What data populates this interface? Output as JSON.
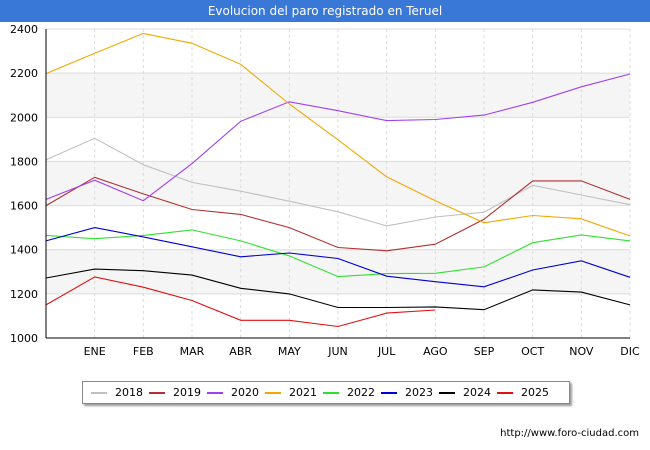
{
  "title": "Evolucion del paro registrado en Teruel",
  "source": "http://www.foro-ciudad.com",
  "chart_data": {
    "type": "line",
    "x": [
      "",
      "ENE",
      "FEB",
      "MAR",
      "ABR",
      "MAY",
      "JUN",
      "JUL",
      "AGO",
      "SEP",
      "OCT",
      "NOV",
      "DIC"
    ],
    "ylim": [
      1000,
      2400
    ],
    "yticks": [
      1000,
      1200,
      1400,
      1600,
      1800,
      2000,
      2200,
      2400
    ],
    "grid": true,
    "legend": "bottom",
    "series": [
      {
        "name": "2018",
        "color": "#c0c0c0",
        "values": [
          1808,
          1905,
          1785,
          1705,
          1665,
          1620,
          1572,
          1508,
          1548,
          1570,
          1692,
          1648,
          1604
        ]
      },
      {
        "name": "2019",
        "color": "#b03030",
        "values": [
          1600,
          1728,
          1653,
          1582,
          1560,
          1500,
          1410,
          1395,
          1425,
          1538,
          1712,
          1712,
          1628
        ]
      },
      {
        "name": "2020",
        "color": "#a040f0",
        "values": [
          1628,
          1715,
          1622,
          1790,
          1982,
          2070,
          2030,
          1985,
          1990,
          2010,
          2068,
          2138,
          2196
        ]
      },
      {
        "name": "2021",
        "color": "#f0a800",
        "values": [
          2198,
          2290,
          2380,
          2335,
          2240,
          2060,
          1898,
          1730,
          1622,
          1522,
          1555,
          1540,
          1462
        ]
      },
      {
        "name": "2022",
        "color": "#30e030",
        "values": [
          1465,
          1450,
          1465,
          1490,
          1440,
          1372,
          1278,
          1292,
          1293,
          1322,
          1432,
          1467,
          1440
        ]
      },
      {
        "name": "2023",
        "color": "#0000d0",
        "values": [
          1440,
          1500,
          1458,
          1413,
          1368,
          1385,
          1360,
          1280,
          1255,
          1232,
          1308,
          1350,
          1275
        ]
      },
      {
        "name": "2024",
        "color": "#000000",
        "values": [
          1272,
          1312,
          1305,
          1285,
          1225,
          1200,
          1138,
          1138,
          1141,
          1128,
          1218,
          1208,
          1150
        ]
      },
      {
        "name": "2025",
        "color": "#e01010",
        "values": [
          1150,
          1277,
          1230,
          1170,
          1080,
          1080,
          1052,
          1113,
          1127,
          null,
          null,
          null,
          null
        ]
      }
    ]
  }
}
